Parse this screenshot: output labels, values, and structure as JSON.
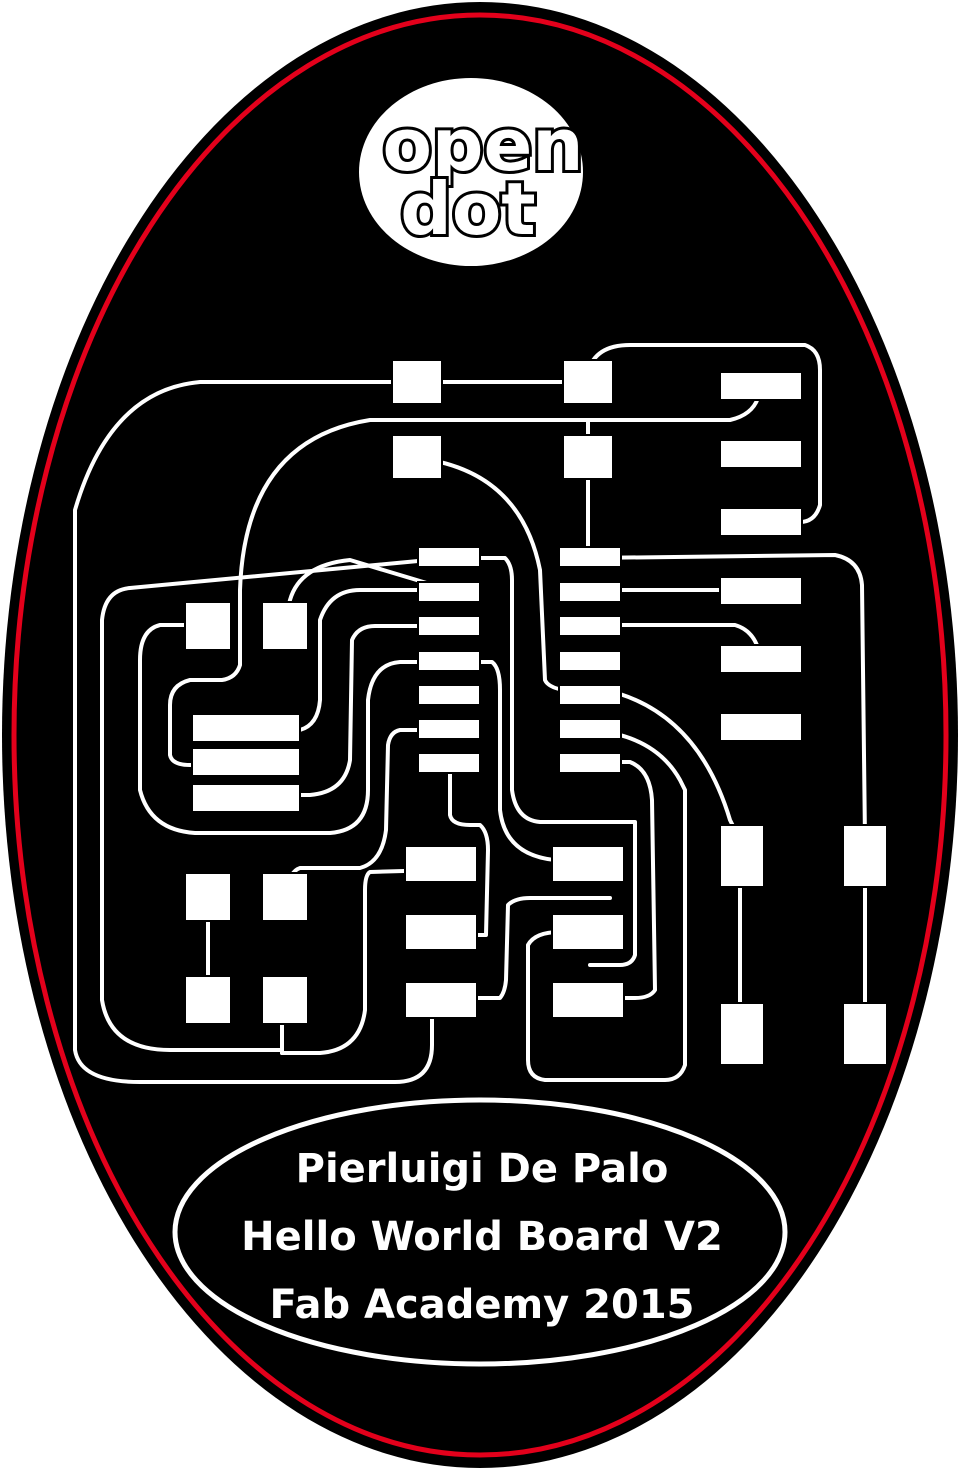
{
  "logo": {
    "line1": "open",
    "line2": "dot"
  },
  "caption": {
    "line1": "Pierluigi De Palo",
    "line2": "Hello World Board V2",
    "line3": "Fab Academy 2015"
  },
  "colors": {
    "background": "#000000",
    "border_red": "#e3001b",
    "trace": "#ffffff",
    "page": "#ffffff"
  }
}
